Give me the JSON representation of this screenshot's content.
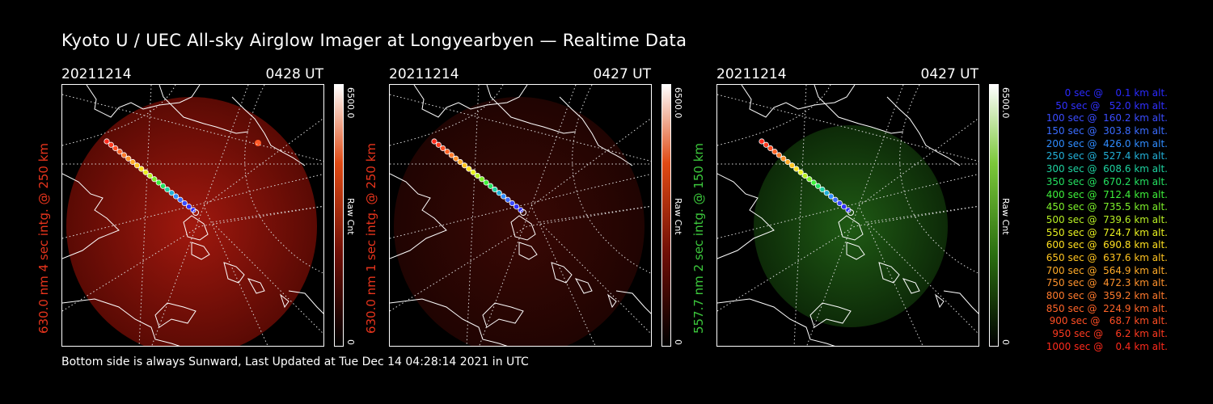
{
  "header": {
    "title": "Kyoto U / UEC All-sky Airglow Imager at Longyearbyen — Realtime Data"
  },
  "footer": {
    "text": "Bottom side is always Sunward, Last Updated at Tue Dec 14 04:28:14 2021 in UTC"
  },
  "panels": [
    {
      "date": "20211214",
      "time": "0428 UT",
      "ylabel": "630.0 nm 4 sec intg. @ 250 km",
      "label_color": "#e8341c",
      "colorbar_top": "#ff5a1e",
      "colorbar_max": "6500.0",
      "colorbar_unit": "Raw Cnt",
      "colorbar_min": "0",
      "glow": "strong-red"
    },
    {
      "date": "20211214",
      "time": "0427 UT",
      "ylabel": "630.0 nm 1 sec intg. @ 250 km",
      "label_color": "#e8341c",
      "colorbar_top": "#ff5a1e",
      "colorbar_max": "6500.0",
      "colorbar_unit": "Raw Cnt",
      "colorbar_min": "0",
      "glow": "dim-red"
    },
    {
      "date": "20211214",
      "time": "0427 UT",
      "ylabel": "557.7 nm 2 sec intg. @ 150 km",
      "label_color": "#3cc83c",
      "colorbar_top": "#5ac81e",
      "colorbar_max": "6500.0",
      "colorbar_unit": "Raw Cnt",
      "colorbar_min": "0",
      "glow": "green"
    }
  ],
  "legend": [
    {
      "text": "   0 sec @    0.1 km alt.",
      "color": "#2a2aff"
    },
    {
      "text": "  50 sec @   52.0 km alt.",
      "color": "#3030ff"
    },
    {
      "text": " 100 sec @  160.2 km alt.",
      "color": "#3a4cff"
    },
    {
      "text": " 150 sec @  303.8 km alt.",
      "color": "#3a6cff"
    },
    {
      "text": " 200 sec @  426.0 km alt.",
      "color": "#2f8cff"
    },
    {
      "text": " 250 sec @  527.4 km alt.",
      "color": "#22b0d8"
    },
    {
      "text": " 300 sec @  608.6 km alt.",
      "color": "#1ed2a0"
    },
    {
      "text": " 350 sec @  670.2 km alt.",
      "color": "#24e060"
    },
    {
      "text": " 400 sec @  712.4 km alt.",
      "color": "#3ef03a"
    },
    {
      "text": " 450 sec @  735.5 km alt.",
      "color": "#7cf02a"
    },
    {
      "text": " 500 sec @  739.6 km alt.",
      "color": "#b8f024"
    },
    {
      "text": " 550 sec @  724.7 km alt.",
      "color": "#e8f020"
    },
    {
      "text": " 600 sec @  690.8 km alt.",
      "color": "#ffe020"
    },
    {
      "text": " 650 sec @  637.6 km alt.",
      "color": "#ffc420"
    },
    {
      "text": " 700 sec @  564.9 km alt.",
      "color": "#ffaa28"
    },
    {
      "text": " 750 sec @  472.3 km alt.",
      "color": "#ff922c"
    },
    {
      "text": " 800 sec @  359.2 km alt.",
      "color": "#ff7a2c"
    },
    {
      "text": " 850 sec @  224.9 km alt.",
      "color": "#ff6428"
    },
    {
      "text": " 900 sec @   68.7 km alt.",
      "color": "#ff4e24"
    },
    {
      "text": " 950 sec @    6.2 km alt.",
      "color": "#ff3a20"
    },
    {
      "text": "1000 sec @    0.4 km alt.",
      "color": "#ff2a1c"
    }
  ],
  "icons": {
    "trajectory": "trajectory-dots",
    "coastline": "coastline-outline",
    "grid": "latlon-grid"
  }
}
